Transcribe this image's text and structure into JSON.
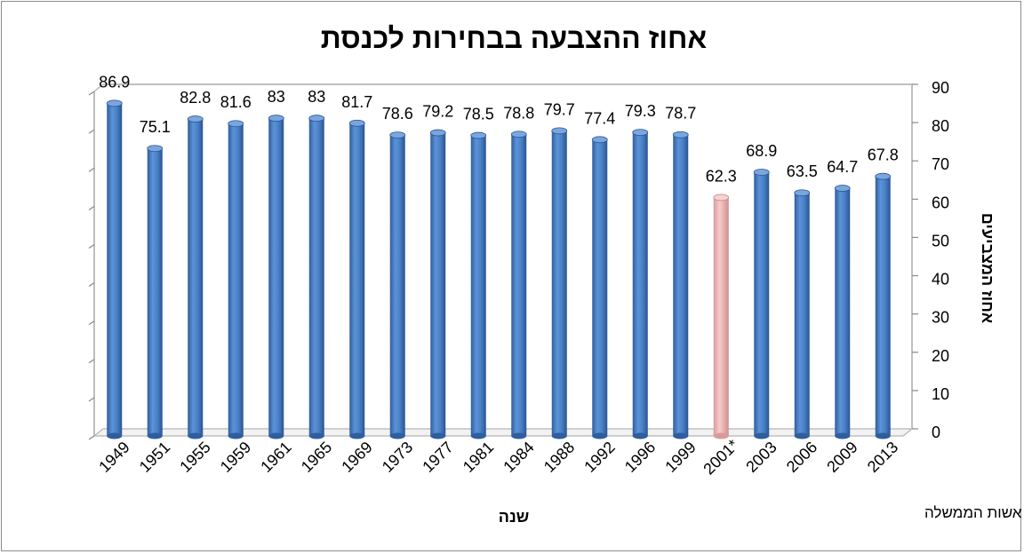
{
  "chart_data": {
    "type": "bar",
    "title": "אחוז ההצבעה בבחירות לכנסת",
    "xlabel": "שנה",
    "ylabel": "אחוז המצביעים",
    "ylim": [
      0,
      90
    ],
    "ytick_step": 10,
    "y_axis_side": "right",
    "grid": false,
    "legend": "none",
    "footnote": "* בחירות לראשות הממשלה",
    "categories": [
      "1949",
      "1951",
      "1955",
      "1959",
      "1961",
      "1965",
      "1969",
      "1973",
      "1977",
      "1981",
      "1984",
      "1988",
      "1992",
      "1996",
      "1999",
      "2001*",
      "2003",
      "2006",
      "2009",
      "2013"
    ],
    "values": [
      86.9,
      75.1,
      82.8,
      81.6,
      83,
      83,
      81.7,
      78.6,
      79.2,
      78.5,
      78.8,
      79.7,
      77.4,
      79.3,
      78.7,
      62.3,
      68.9,
      63.5,
      64.7,
      67.8
    ],
    "data_labels": [
      "86.9",
      "75.1",
      "82.8",
      "81.6",
      "83",
      "83",
      "81.7",
      "78.6",
      "79.2",
      "78.5",
      "78.8",
      "79.7",
      "77.4",
      "79.3",
      "78.7",
      "62.3",
      "68.9",
      "63.5",
      "64.7",
      "67.8"
    ],
    "colors": {
      "bar": "#4a7fc8",
      "bar_highlight": "#f0b4b4",
      "highlight_category": "2001*",
      "wall": "#c0c0c0"
    }
  }
}
